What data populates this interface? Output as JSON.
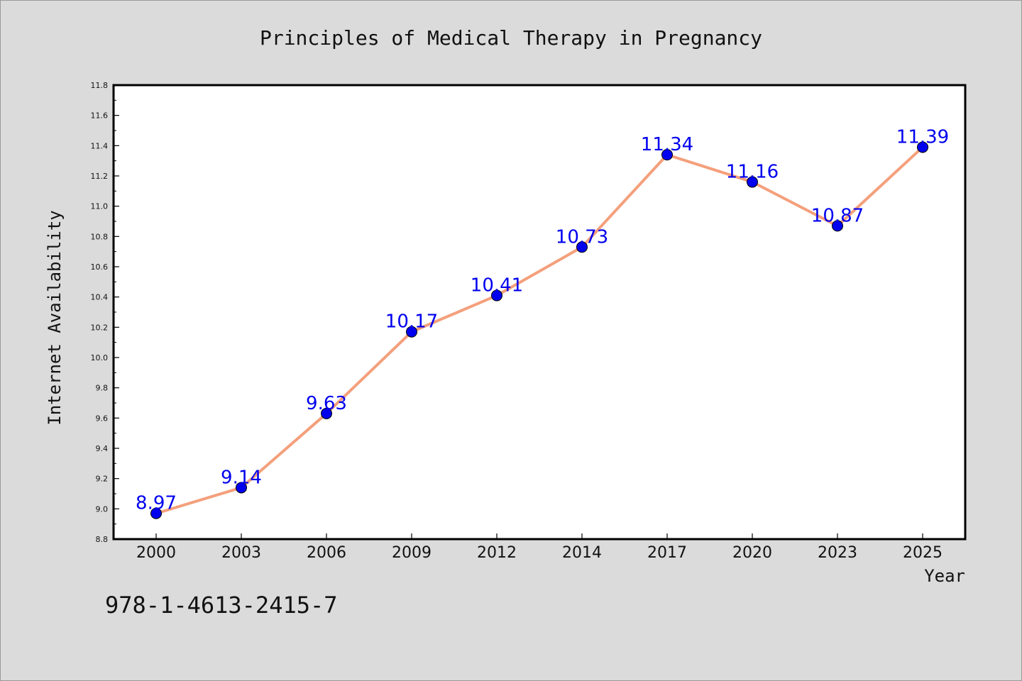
{
  "chart_data": {
    "type": "line",
    "title": "Principles of Medical Therapy in Pregnancy",
    "xlabel": "Year",
    "ylabel": "Internet Availability",
    "categories": [
      "2000",
      "2003",
      "2006",
      "2009",
      "2012",
      "2014",
      "2017",
      "2020",
      "2023",
      "2025"
    ],
    "series": [
      {
        "values": [
          8.97,
          9.14,
          9.63,
          10.17,
          10.41,
          10.73,
          11.34,
          11.16,
          10.87,
          11.39
        ],
        "line_color": "#f4a07c",
        "marker_color": "#0000ee",
        "label_color": "#0000ee"
      }
    ],
    "ylim": [
      8.8,
      11.8
    ],
    "yticks": [
      "8.8",
      "9.0",
      "9.2",
      "9.4",
      "9.6",
      "9.8",
      "10.0",
      "10.2",
      "10.4",
      "10.6",
      "10.8",
      "11.0",
      "11.2",
      "11.4",
      "11.6",
      "11.8"
    ],
    "grid": false,
    "data_labels": true
  },
  "footer": {
    "isbn": "978-1-4613-2415-7"
  },
  "colors": {
    "background": "#dbdbdb",
    "plot_background": "#ffffff",
    "axis": "#000000"
  }
}
